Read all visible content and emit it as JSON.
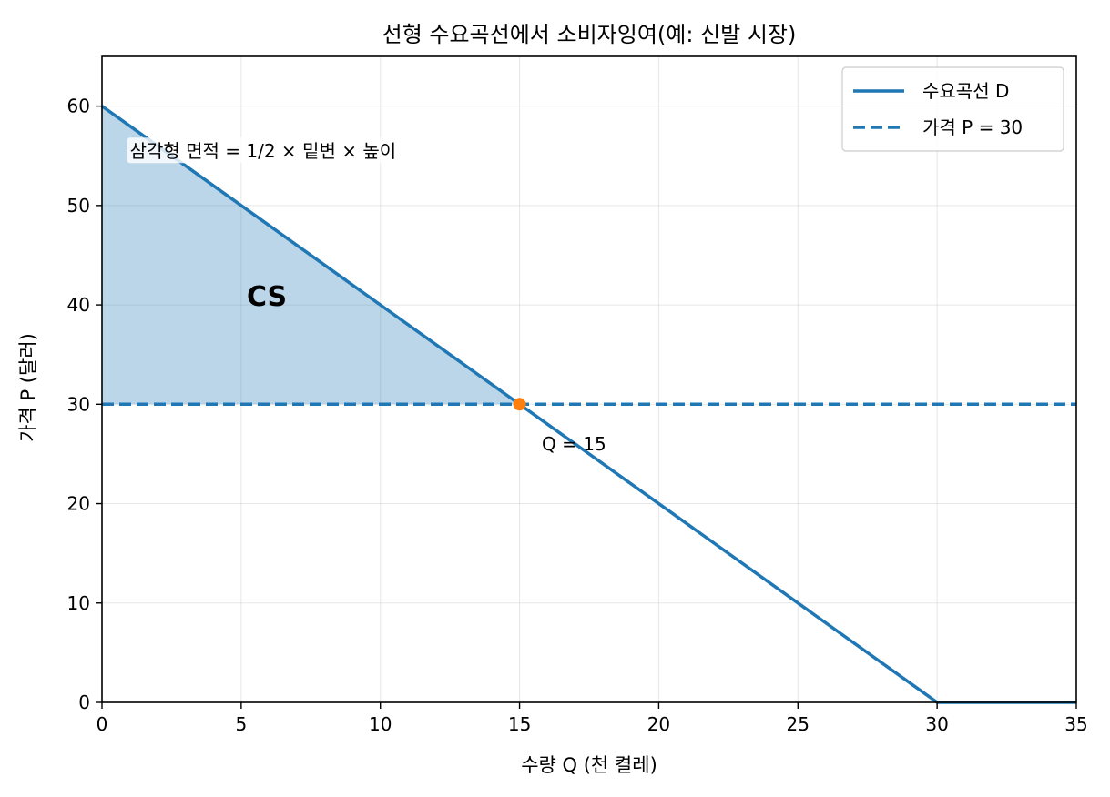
{
  "chart_data": {
    "type": "line",
    "title": "선형 수요곡선에서 소비자잉여(예: 신발 시장)",
    "xlabel": "수량 Q (천 켤레)",
    "ylabel": "가격 P (달러)",
    "xlim": [
      0,
      35
    ],
    "ylim": [
      0,
      65
    ],
    "xticks": [
      0,
      5,
      10,
      15,
      20,
      25,
      30,
      35
    ],
    "yticks": [
      0,
      10,
      20,
      30,
      40,
      50,
      60
    ],
    "grid": true,
    "legend_position": "top-right",
    "series": [
      {
        "name": "수요곡선 D",
        "style": "solid",
        "color": "#1f77b4",
        "x": [
          0,
          30,
          35
        ],
        "y": [
          60,
          0,
          0
        ]
      },
      {
        "name": "가격 P = 30",
        "style": "dashed",
        "color": "#1f77b4",
        "x": [
          0,
          35
        ],
        "y": [
          30,
          30
        ]
      }
    ],
    "shaded_region": {
      "label": "CS",
      "color": "#1f77b4",
      "points": [
        [
          0,
          60
        ],
        [
          15,
          30
        ],
        [
          0,
          30
        ]
      ]
    },
    "point": {
      "x": 15,
      "y": 30,
      "color": "#ff7f0e"
    },
    "annotations": [
      {
        "text": "삼각형 면적 = 1/2 × 밑변 × 높이",
        "x": 1,
        "y": 55
      },
      {
        "text": "Q = 15",
        "x": 15.8,
        "y": 26
      },
      {
        "text": "CS",
        "x": 5.2,
        "y": 40
      }
    ]
  }
}
